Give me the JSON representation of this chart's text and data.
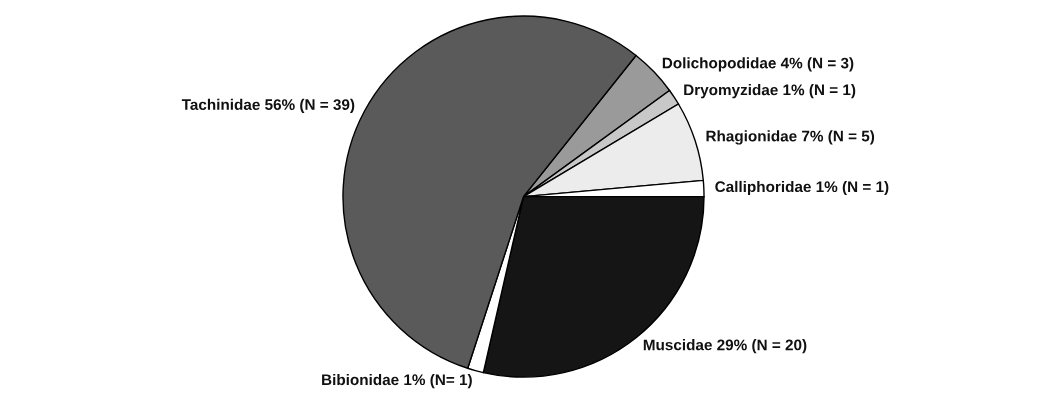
{
  "chart_data": {
    "type": "pie",
    "categories": [
      "Dolichopodidae",
      "Dryomyzidae",
      "Rhagionidae",
      "Calliphoridae",
      "Muscidae",
      "Bibionidae",
      "Tachinidae"
    ],
    "values": [
      3,
      1,
      5,
      1,
      20,
      1,
      39
    ],
    "value_labels": [
      "4% (N = 3)",
      "1% (N = 1)",
      "7% (N = 5)",
      "1% (N = 1)",
      "29% (N = 20)",
      "1% (N= 1)",
      "56% (N = 39)"
    ],
    "colors": [
      "#9a9a9a",
      "#c8c8c8",
      "#ececec",
      "#ffffff",
      "#151515",
      "#ffffff",
      "#5a5a5a"
    ],
    "legend": false
  }
}
